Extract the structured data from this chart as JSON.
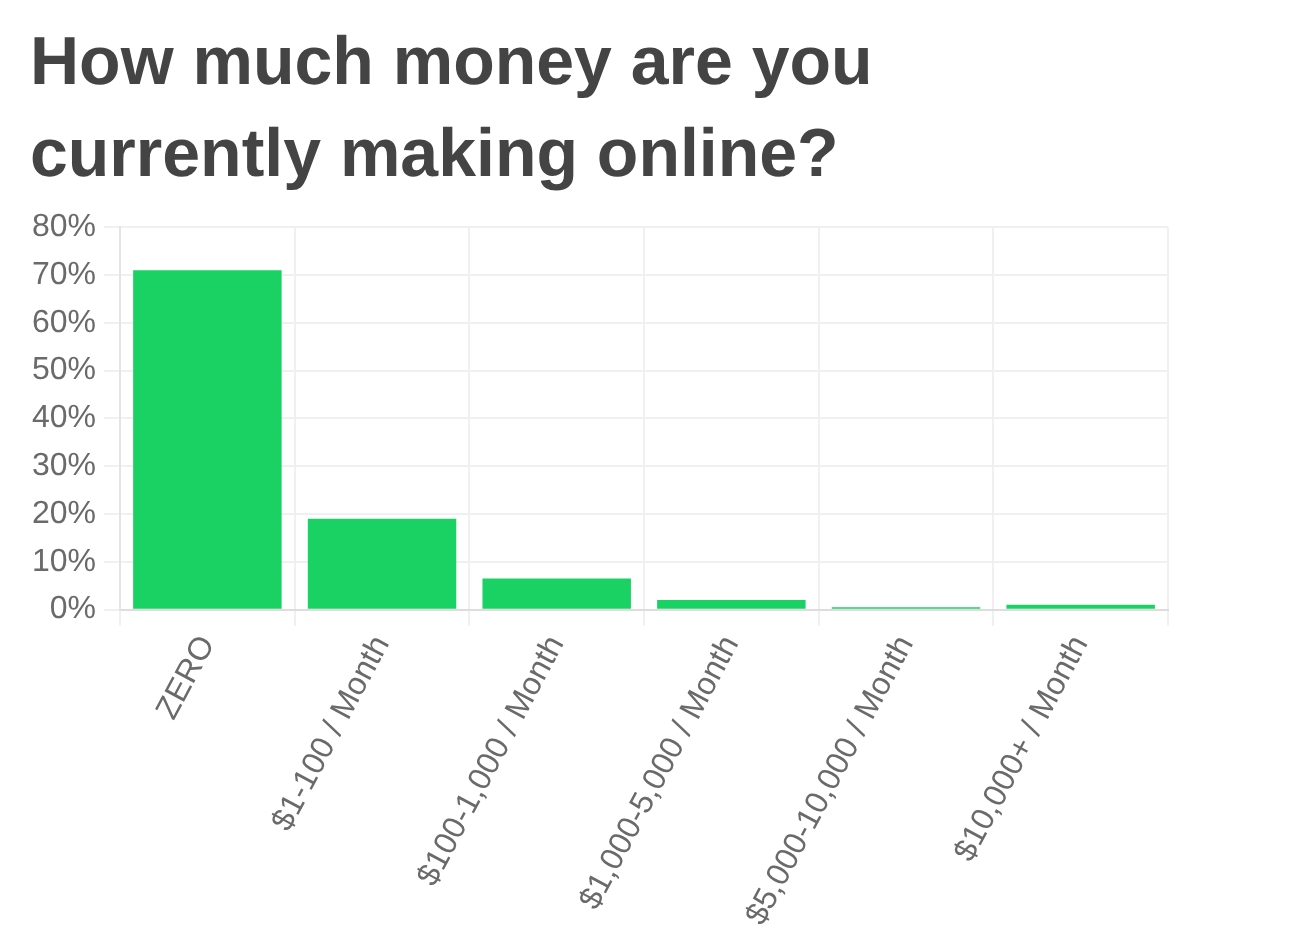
{
  "chart_data": {
    "type": "bar",
    "title": "How much money are you currently making online?",
    "categories": [
      "ZERO",
      "$1-100 / Month",
      "$100-1,000 / Month",
      "$1,000-5,000 / Month",
      "$5,000-10,000 / Month",
      "$10,000+ / Month"
    ],
    "values": [
      71,
      19,
      6.5,
      2,
      0.5,
      1
    ],
    "color": "#1ad163",
    "ylim": [
      0,
      80
    ],
    "yticks": [
      {
        "value": 0,
        "label": "0%"
      },
      {
        "value": 10,
        "label": "10%"
      },
      {
        "value": 20,
        "label": "20%"
      },
      {
        "value": 30,
        "label": "30%"
      },
      {
        "value": 40,
        "label": "40%"
      },
      {
        "value": 50,
        "label": "50%"
      },
      {
        "value": 60,
        "label": "60%"
      },
      {
        "value": 70,
        "label": "70%"
      },
      {
        "value": 80,
        "label": "80%"
      }
    ],
    "grid": true
  }
}
